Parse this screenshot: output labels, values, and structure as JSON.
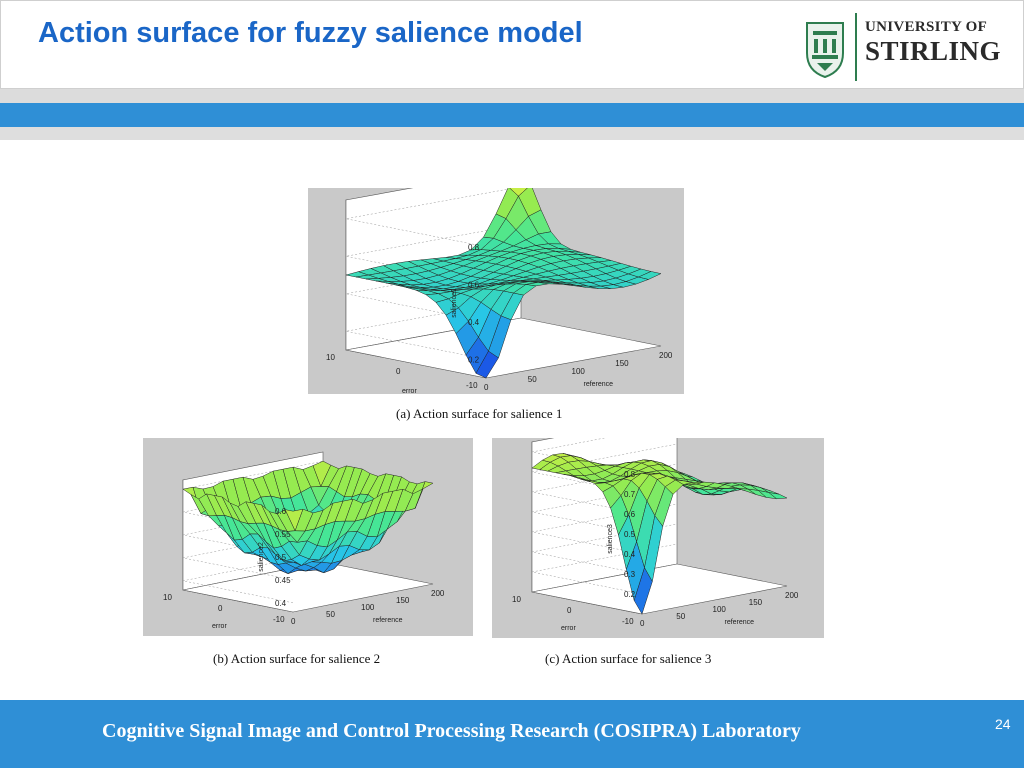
{
  "slide": {
    "title": "Action surface for fuzzy salience model",
    "logo": {
      "line1": "UNIVERSITY OF",
      "line2": "STIRLING"
    },
    "footer": "Cognitive Signal Image and Control Processing Research (COSIPRA) Laboratory",
    "page_number": "24"
  },
  "colors": {
    "title": "#1a66c7",
    "band": "#2f8fd6",
    "surface_low": "#1f4fe0",
    "surface_mid": "#3fe0e0",
    "surface_high": "#f0f040"
  },
  "chart_data": [
    {
      "type": "surface",
      "caption": "(a) Action surface for salience 1",
      "xlabel": "reference",
      "ylabel": "error",
      "zlabel": "salience1",
      "xticks": [
        "0",
        "50",
        "100",
        "150",
        "200"
      ],
      "yticks": [
        "-10",
        "0",
        "10"
      ],
      "zticks": [
        "0.2",
        "0.4",
        "0.6",
        "0.8"
      ],
      "xlim": [
        0,
        200
      ],
      "ylim": [
        -10,
        10
      ],
      "zlim": [
        0.1,
        0.9
      ],
      "shape": "flat plateau near 0.5 with a peak near 0.85 at reference 200, error 10 and a dip near 0.1 at reference 0, error -10"
    },
    {
      "type": "surface",
      "caption": "(b) Action surface for salience 2",
      "xlabel": "reference",
      "ylabel": "error",
      "zlabel": "salience2",
      "xticks": [
        "0",
        "50",
        "100",
        "150",
        "200"
      ],
      "yticks": [
        "-10",
        "0",
        "10"
      ],
      "zticks": [
        "0.4",
        "0.45",
        "0.5",
        "0.55",
        "0.6"
      ],
      "xlim": [
        0,
        200
      ],
      "ylim": [
        -10,
        10
      ],
      "zlim": [
        0.38,
        0.62
      ],
      "shape": "valley near 0.42 along the centre with high ridges near 0.6 at the corners"
    },
    {
      "type": "surface",
      "caption": "(c) Action surface for salience 3",
      "xlabel": "reference",
      "ylabel": "error",
      "zlabel": "salience3",
      "xticks": [
        "0",
        "50",
        "100",
        "150",
        "200"
      ],
      "yticks": [
        "-10",
        "0",
        "10"
      ],
      "zticks": [
        "0.2",
        "0.3",
        "0.4",
        "0.5",
        "0.6",
        "0.7",
        "0.8"
      ],
      "xlim": [
        0,
        200
      ],
      "ylim": [
        -10,
        10
      ],
      "zlim": [
        0.1,
        0.85
      ],
      "shape": "broad plateau near 0.75 dropping to about 0.1 near reference 0, error -10"
    }
  ]
}
